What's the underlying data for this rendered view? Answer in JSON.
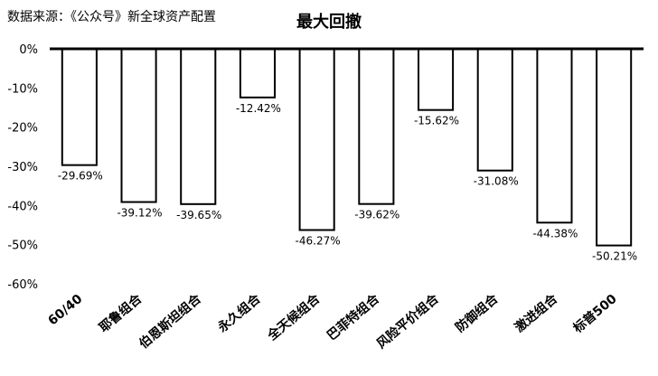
{
  "source_note": "数据来源：《公众号》新全球资产配置",
  "chart_data": {
    "type": "bar",
    "title": "最大回撤",
    "xlabel": "",
    "ylabel": "",
    "categories": [
      "60/40",
      "耶鲁组合",
      "伯恩斯坦组合",
      "永久组合",
      "全天候组合",
      "巴菲特组合",
      "风险平价组合",
      "防御组合",
      "激进组合",
      "标普500"
    ],
    "values": [
      -29.69,
      -39.12,
      -39.65,
      -12.42,
      -46.27,
      -39.62,
      -15.62,
      -31.08,
      -44.38,
      -50.21
    ],
    "data_labels": [
      "-29.69%",
      "-39.12%",
      "-39.65%",
      "-12.42%",
      "-46.27%",
      "-39.62%",
      "-15.62%",
      "-31.08%",
      "-44.38%",
      "-50.21%"
    ],
    "yticks": [
      "0%",
      "-10%",
      "-20%",
      "-30%",
      "-40%",
      "-50%",
      "-60%"
    ],
    "ylim": [
      -60,
      0
    ],
    "bar_color": "#ffffff",
    "bar_edge_color": "#000000",
    "grid": false,
    "legend": "none"
  }
}
